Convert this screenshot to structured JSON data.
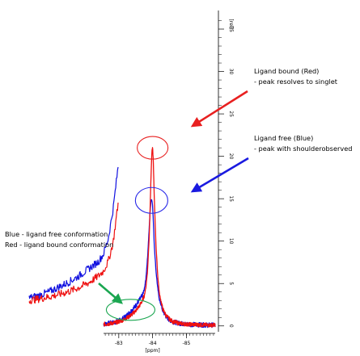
{
  "chart_data": {
    "type": "line",
    "xlabel": "[ppm]",
    "ylabel": "[rel]",
    "x_axis": {
      "reversed": true,
      "range": [
        -82.55,
        -85.85
      ],
      "ticks": [
        -83,
        -84,
        -85
      ]
    },
    "y_axis": {
      "range": [
        -0.5,
        37
      ],
      "ticks": [
        0,
        5,
        10,
        15,
        20,
        25,
        30,
        35
      ],
      "position": "right"
    },
    "grid": false,
    "series": [
      {
        "name": "Ligand free (Blue)",
        "color": "#1010e0",
        "x": [
          -82.55,
          -82.7,
          -82.85,
          -83.0,
          -83.1,
          -83.2,
          -83.3,
          -83.4,
          -83.5,
          -83.6,
          -83.7,
          -83.75,
          -83.8,
          -83.85,
          -83.9,
          -83.93,
          -83.96,
          -83.98,
          -84.0,
          -84.02,
          -84.05,
          -84.1,
          -84.15,
          -84.2,
          -84.3,
          -84.4,
          -84.5,
          -84.6,
          -84.8,
          -85.0,
          -85.3,
          -85.6,
          -85.8
        ],
        "y": [
          0.2,
          0.3,
          0.4,
          0.6,
          0.8,
          1.1,
          1.5,
          1.9,
          2.4,
          3.0,
          3.6,
          4.2,
          5.5,
          8.0,
          11.5,
          13.8,
          15.0,
          14.8,
          14.2,
          12.5,
          9.5,
          6.5,
          4.5,
          3.1,
          1.8,
          1.1,
          0.7,
          0.5,
          0.3,
          0.2,
          0.15,
          0.1,
          0.1
        ]
      },
      {
        "name": "Ligand bound (Red)",
        "color": "#ee1111",
        "x": [
          -82.55,
          -82.7,
          -82.85,
          -83.0,
          -83.1,
          -83.2,
          -83.3,
          -83.4,
          -83.5,
          -83.6,
          -83.7,
          -83.75,
          -83.8,
          -83.85,
          -83.9,
          -83.93,
          -83.96,
          -83.98,
          -84.0,
          -84.02,
          -84.05,
          -84.1,
          -84.15,
          -84.2,
          -84.3,
          -84.4,
          -84.5,
          -84.6,
          -84.8,
          -85.0,
          -85.3,
          -85.6,
          -85.8
        ],
        "y": [
          0.2,
          0.25,
          0.35,
          0.5,
          0.65,
          0.85,
          1.1,
          1.4,
          1.8,
          2.3,
          3.0,
          3.5,
          4.5,
          6.5,
          10.5,
          14.5,
          18.5,
          20.6,
          21.0,
          19.5,
          15.0,
          9.5,
          6.0,
          3.8,
          2.0,
          1.2,
          0.8,
          0.5,
          0.3,
          0.2,
          0.15,
          0.1,
          0.1
        ]
      }
    ],
    "inset": {
      "description_label_lines": [
        "Blue - ligand free conformation",
        "Red - ligand bound conformation"
      ],
      "source_x_range": [
        -83.0,
        -83.9
      ],
      "source_y_range": [
        0,
        4.5
      ]
    },
    "annotations": [
      {
        "id": "bound",
        "title": "Ligand bound (Red)",
        "detail": "- peak resolves to singlet",
        "color": "#e82020",
        "points_to": {
          "x": -84.0,
          "y": 21
        }
      },
      {
        "id": "free",
        "title": "Ligand free (Blue)",
        "detail": "- peak with shoulderobserved",
        "color": "#1a1ae0",
        "points_to": {
          "x": -84.0,
          "y": 15
        }
      }
    ],
    "highlights": [
      {
        "color": "#e82020",
        "center": {
          "x": -84.0,
          "y": 21
        }
      },
      {
        "color": "#2a2ae8",
        "center": {
          "x": -83.97,
          "y": 14.8
        }
      },
      {
        "color": "#1aa650",
        "center": {
          "x": -83.35,
          "y": 1.9
        }
      }
    ]
  }
}
